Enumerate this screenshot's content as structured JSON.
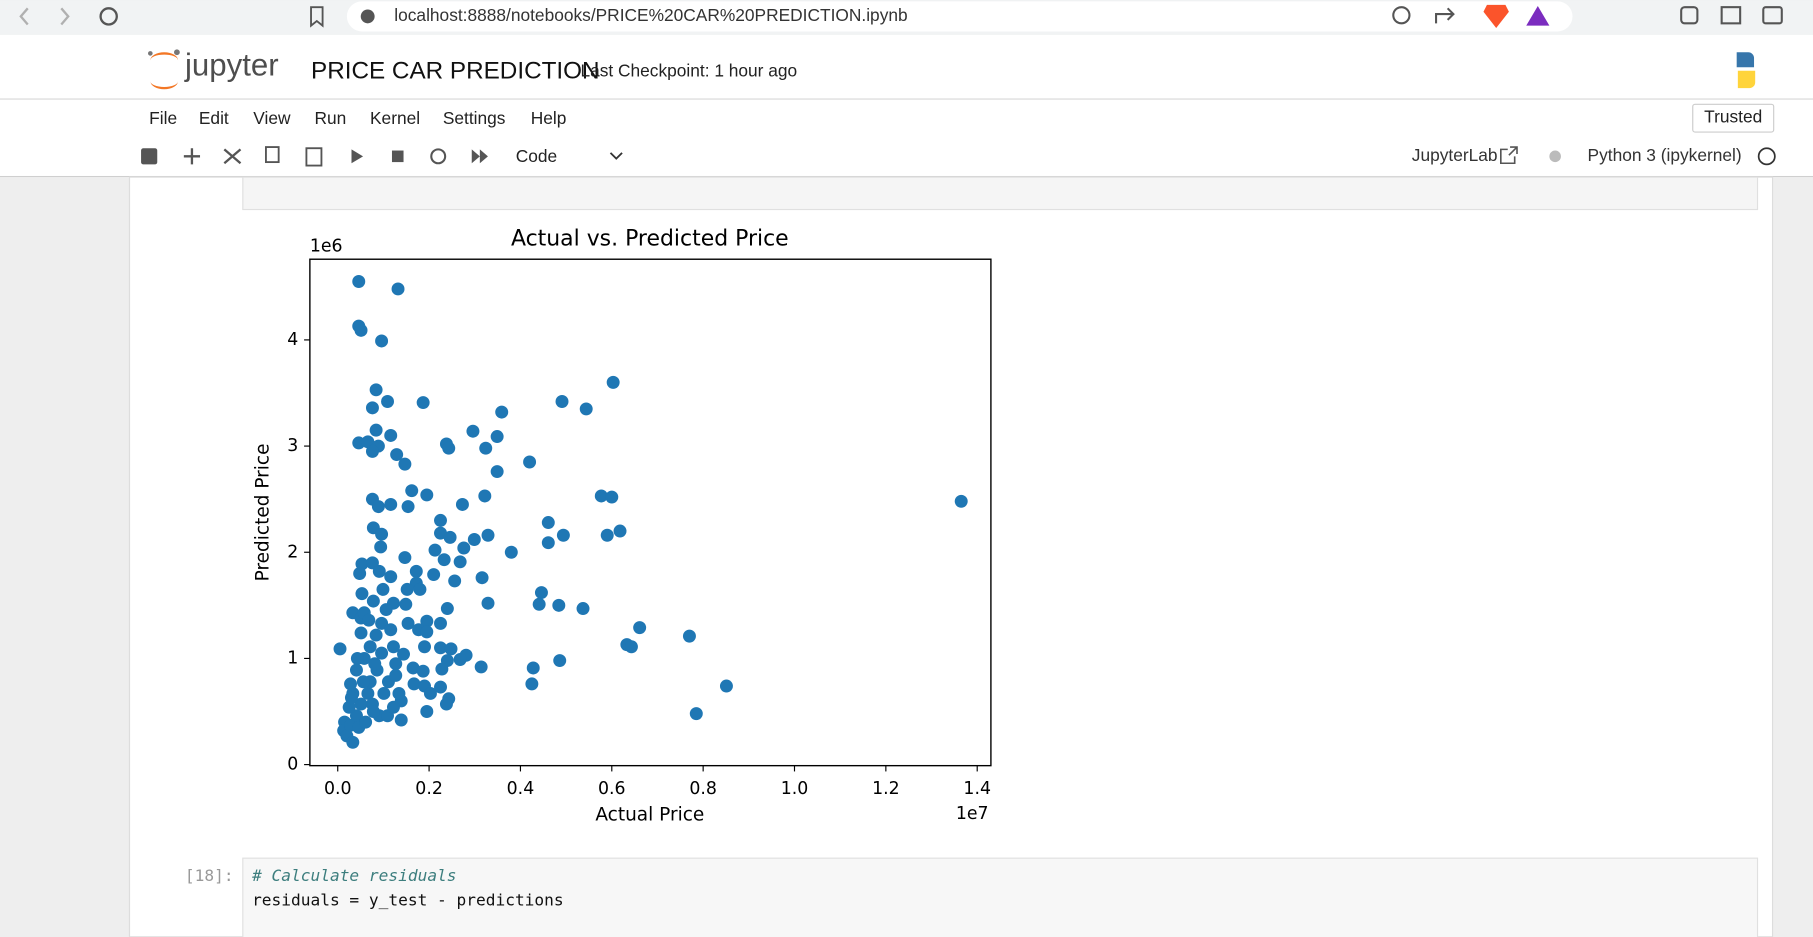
{
  "browser": {
    "url": "localhost:8888/notebooks/PRICE%20CAR%20PREDICTION.ipynb"
  },
  "header": {
    "logo": "jupyter",
    "title": "PRICE CAR PREDICTION",
    "checkpoint": "Last Checkpoint: 1 hour ago"
  },
  "menu": [
    "File",
    "Edit",
    "View",
    "Run",
    "Kernel",
    "Settings",
    "Help"
  ],
  "trusted": "Trusted",
  "toolbar": {
    "cell_type": "Code",
    "jupyterlab": "JupyterLab",
    "kernel": "Python 3 (ipykernel)"
  },
  "chart_data": {
    "type": "scatter",
    "title": "Actual vs. Predicted Price",
    "x_label": "Actual Price",
    "y_label": "Predicted Price",
    "x_offset": "1e7",
    "y_offset": "1e6",
    "color": "#1f77b4",
    "x": [
      0.046,
      0.132,
      0.046,
      0.051,
      0.096,
      0.603,
      0.084,
      0.109,
      0.187,
      0.491,
      0.544,
      0.359,
      0.076,
      0.084,
      0.116,
      0.296,
      0.349,
      0.046,
      0.066,
      0.089,
      0.238,
      0.243,
      0.324,
      0.076,
      0.129,
      0.147,
      0.42,
      0.349,
      0.162,
      0.195,
      0.322,
      0.577,
      0.6,
      1.365,
      0.076,
      0.089,
      0.116,
      0.154,
      0.273,
      0.225,
      0.461,
      0.078,
      0.096,
      0.225,
      0.246,
      0.329,
      0.299,
      0.494,
      0.618,
      0.59,
      0.461,
      0.094,
      0.276,
      0.213,
      0.38,
      0.053,
      0.076,
      0.147,
      0.268,
      0.233,
      0.048,
      0.091,
      0.116,
      0.172,
      0.21,
      0.256,
      0.316,
      0.172,
      0.152,
      0.099,
      0.18,
      0.053,
      0.446,
      0.078,
      0.122,
      0.149,
      0.329,
      0.441,
      0.484,
      0.537,
      0.24,
      0.033,
      0.051,
      0.154,
      0.195,
      0.225,
      0.177,
      0.195,
      0.661,
      0.77,
      0.633,
      0.643,
      0.005,
      0.19,
      0.225,
      0.248,
      0.281,
      0.144,
      0.24,
      0.268,
      0.486,
      0.314,
      0.428,
      0.165,
      0.228,
      0.187,
      0.127,
      0.425,
      0.851,
      0.167,
      0.19,
      0.225,
      0.203,
      0.243,
      0.238,
      0.139,
      0.195,
      0.785,
      0.139,
      0.015,
      0.013,
      0.02,
      0.033,
      0.028,
      0.041,
      0.046,
      0.025,
      0.033,
      0.028,
      0.041,
      0.058,
      0.071,
      0.084,
      0.051,
      0.096,
      0.066,
      0.076,
      0.091,
      0.101,
      0.111,
      0.122,
      0.116,
      0.058,
      0.071,
      0.086,
      0.051,
      0.109,
      0.134,
      0.061,
      0.081,
      0.096,
      0.127,
      0.03,
      0.056,
      0.068,
      0.106,
      0.078,
      0.043,
      0.122
    ],
    "y": [
      4.55,
      4.48,
      4.13,
      4.09,
      3.99,
      3.6,
      3.53,
      3.42,
      3.41,
      3.42,
      3.35,
      3.32,
      3.36,
      3.15,
      3.1,
      3.14,
      3.09,
      3.03,
      3.04,
      3.0,
      3.02,
      2.98,
      2.98,
      2.95,
      2.92,
      2.83,
      2.85,
      2.76,
      2.58,
      2.54,
      2.53,
      2.53,
      2.52,
      2.48,
      2.5,
      2.43,
      2.45,
      2.43,
      2.45,
      2.3,
      2.28,
      2.23,
      2.17,
      2.18,
      2.14,
      2.16,
      2.12,
      2.16,
      2.2,
      2.16,
      2.09,
      2.05,
      2.04,
      2.02,
      2.0,
      1.89,
      1.9,
      1.95,
      1.91,
      1.93,
      1.8,
      1.82,
      1.77,
      1.82,
      1.79,
      1.73,
      1.76,
      1.71,
      1.65,
      1.65,
      1.65,
      1.61,
      1.62,
      1.54,
      1.52,
      1.51,
      1.52,
      1.51,
      1.5,
      1.47,
      1.47,
      1.43,
      1.38,
      1.33,
      1.35,
      1.33,
      1.27,
      1.25,
      1.29,
      1.21,
      1.13,
      1.11,
      1.09,
      1.11,
      1.1,
      1.09,
      1.03,
      1.04,
      0.98,
      0.99,
      0.98,
      0.92,
      0.91,
      0.91,
      0.9,
      0.88,
      0.95,
      0.76,
      0.74,
      0.76,
      0.74,
      0.73,
      0.67,
      0.62,
      0.57,
      0.6,
      0.5,
      0.48,
      0.42,
      0.4,
      0.32,
      0.27,
      0.21,
      0.37,
      0.46,
      0.35,
      0.54,
      0.67,
      0.76,
      0.89,
      1.0,
      1.11,
      1.22,
      1.24,
      1.33,
      0.67,
      0.57,
      0.46,
      0.67,
      0.78,
      1.11,
      1.27,
      1.43,
      0.78,
      0.89,
      0.57,
      0.46,
      0.67,
      0.4,
      0.95,
      1.05,
      0.84,
      0.63,
      0.78,
      1.36,
      1.46,
      0.5,
      1.0,
      0.54
    ],
    "xlim": [
      -0.061,
      1.43
    ],
    "ylim": [
      -0.01,
      4.76
    ],
    "xticks": [
      {
        "value": 0,
        "label": "0.0"
      },
      0.2,
      0.4,
      0.6,
      0.8,
      {
        "value": 1,
        "label": "1.0"
      },
      1.2,
      1.4
    ],
    "yticks": [
      0,
      1,
      2,
      3,
      4
    ]
  },
  "cell": {
    "prompt": "[18]:",
    "lines": [
      "# Calculate residuals",
      "residuals = y_test - predictions"
    ]
  }
}
